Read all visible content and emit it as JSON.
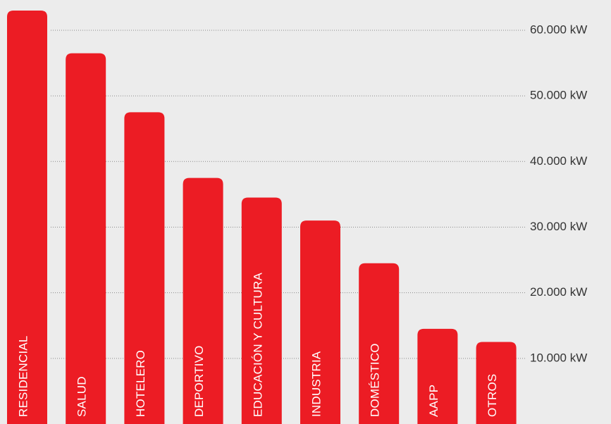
{
  "chart_data": {
    "type": "bar",
    "title": "",
    "xlabel": "",
    "ylabel": "",
    "categories": [
      "RESIDENCIAL",
      "SALUD",
      "HOTELERO",
      "DEPORTIVO",
      "EDUCACIÓN Y CULTURA",
      "INDUSTRIA",
      "DOMÉSTICO",
      "AAPP",
      "OTROS"
    ],
    "values": [
      63000,
      56500,
      47500,
      37500,
      34500,
      31000,
      24500,
      14500,
      12500
    ],
    "ylim": [
      0,
      63000
    ],
    "y_ticks": [
      10000,
      20000,
      30000,
      40000,
      50000,
      60000
    ],
    "y_tick_labels": [
      "10.000 kW",
      "20.000 kW",
      "30.000 kW",
      "40.000 kW",
      "50.000 kW",
      "60.000 kW"
    ],
    "y_axis_position": "right",
    "grid": "horizontal dotted",
    "legend": "none",
    "bar_color": "#ec1c24",
    "label_color": "#ffffff"
  }
}
